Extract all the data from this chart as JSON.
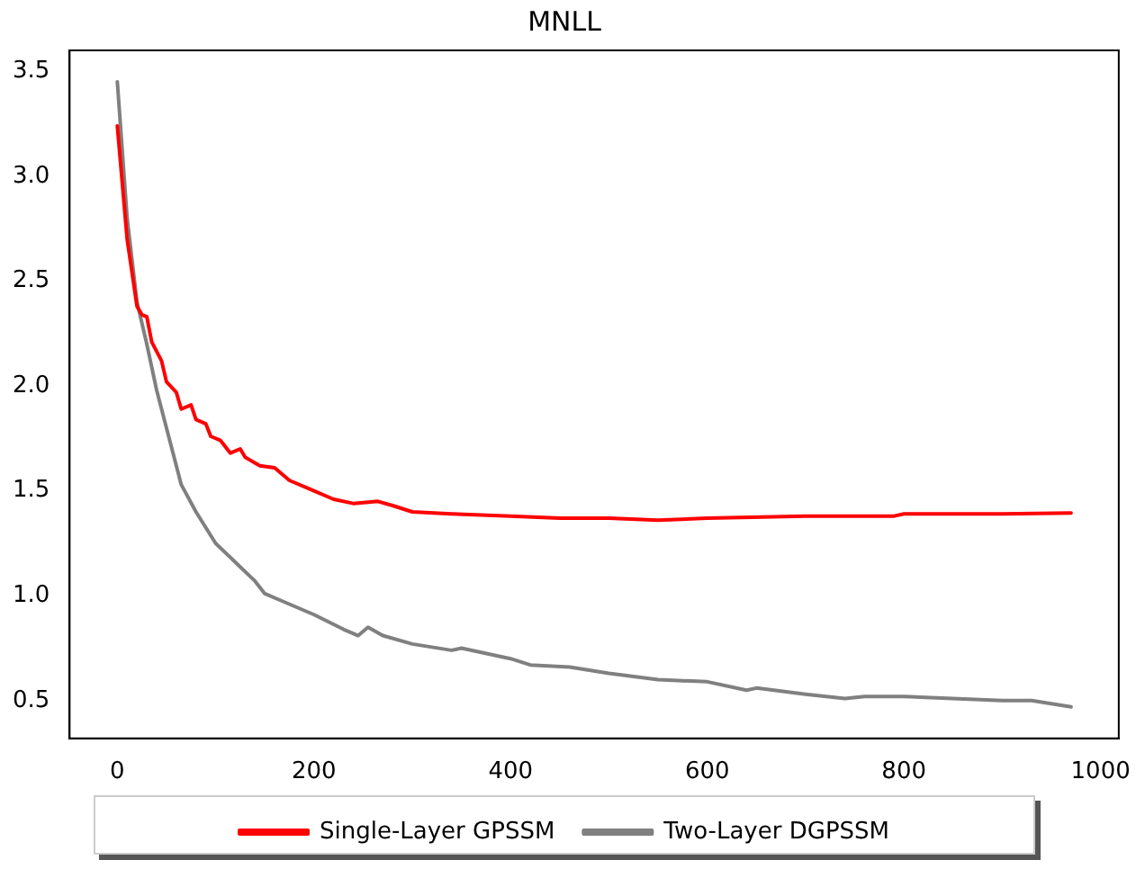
{
  "chart_data": {
    "type": "line",
    "title": "MNLL",
    "xlim": [
      -48.5,
      1018.5
    ],
    "xticks": [
      0,
      200,
      400,
      600,
      800,
      1000
    ],
    "ylim": [
      0.32,
      3.6
    ],
    "yticks": [
      0.5,
      {
        "value": 1,
        "label": "1.0"
      },
      1.5,
      {
        "value": 2,
        "label": "2.0"
      },
      2.5,
      {
        "value": 3,
        "label": "3.0"
      },
      3.5
    ],
    "grid": false,
    "legend": "bottom",
    "marker": "none",
    "line_style": "solid",
    "series": [
      {
        "name": "Single-Layer GPSSM",
        "color": "#ff0000",
        "x": [
          0,
          10,
          20,
          25,
          30,
          35,
          45,
          50,
          60,
          65,
          75,
          80,
          90,
          95,
          105,
          115,
          125,
          130,
          145,
          160,
          175,
          200,
          220,
          240,
          265,
          280,
          300,
          340,
          400,
          450,
          500,
          550,
          600,
          700,
          790,
          800,
          900,
          970
        ],
        "values": [
          3.24,
          2.7,
          2.38,
          2.34,
          2.33,
          2.21,
          2.12,
          2.02,
          1.97,
          1.89,
          1.91,
          1.84,
          1.82,
          1.76,
          1.74,
          1.68,
          1.7,
          1.66,
          1.62,
          1.61,
          1.55,
          1.5,
          1.46,
          1.44,
          1.45,
          1.43,
          1.4,
          1.39,
          1.38,
          1.37,
          1.37,
          1.36,
          1.37,
          1.38,
          1.38,
          1.39,
          1.39,
          1.395
        ]
      },
      {
        "name": "Two-Layer DGPSSM",
        "color": "#808080",
        "x": [
          0,
          10,
          20,
          30,
          40,
          50,
          65,
          80,
          100,
          120,
          140,
          150,
          170,
          200,
          230,
          245,
          255,
          270,
          300,
          340,
          350,
          400,
          420,
          460,
          500,
          550,
          600,
          640,
          650,
          700,
          740,
          760,
          800,
          900,
          930,
          970
        ],
        "values": [
          3.45,
          2.8,
          2.4,
          2.2,
          1.98,
          1.8,
          1.53,
          1.4,
          1.25,
          1.16,
          1.07,
          1.01,
          0.97,
          0.91,
          0.84,
          0.81,
          0.85,
          0.81,
          0.77,
          0.74,
          0.75,
          0.7,
          0.67,
          0.66,
          0.63,
          0.6,
          0.59,
          0.55,
          0.56,
          0.53,
          0.51,
          0.52,
          0.52,
          0.5,
          0.5,
          0.47
        ]
      }
    ]
  }
}
